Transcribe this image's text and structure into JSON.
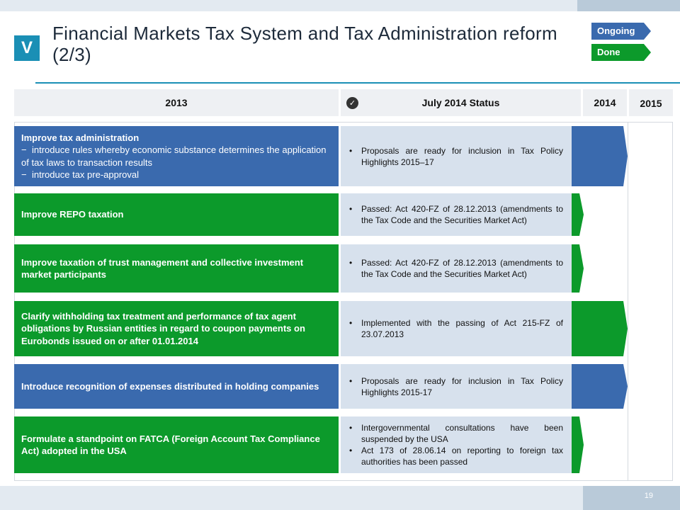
{
  "header": {
    "section": "V",
    "title": "Financial Markets Tax System and Tax Administration reform (2/3)"
  },
  "legend": {
    "ongoing": "Ongoing",
    "done": "Done",
    "ongoing_color": "#3a6aae",
    "done_color": "#0c9a2b"
  },
  "columns": {
    "c2013": "2013",
    "status": "July 2014 Status",
    "c2014": "2014",
    "c2015": "2015"
  },
  "rows": [
    {
      "status_type": "ongoing",
      "title": "Improve tax administration",
      "subitems": [
        "introduce rules whereby economic substance determines the application of tax laws to transaction results",
        "introduce tax pre-approval"
      ],
      "status": [
        "Proposals are ready for inclusion in Tax Policy Highlights 2015–17"
      ]
    },
    {
      "status_type": "done",
      "title": "Improve REPO taxation",
      "status": [
        "Passed: Act 420-FZ of 28.12.2013 (amendments to the Tax Code and the Securities Market Act)"
      ]
    },
    {
      "status_type": "done",
      "title": "Improve taxation of trust management and collective investment market participants",
      "status": [
        "Passed: Act 420-FZ of 28.12.2013 (amendments to the Tax Code and the Securities Market Act)"
      ]
    },
    {
      "status_type": "done",
      "title": "Clarify withholding tax treatment and performance of tax agent obligations by Russian entities in regard to coupon payments on Eurobonds issued on or after 01.01.2014",
      "status": [
        "Implemented with the passing of Act 215-FZ of 23.07.2013"
      ]
    },
    {
      "status_type": "ongoing",
      "title": "Introduce recognition of expenses distributed in holding companies",
      "status": [
        "Proposals are ready for inclusion in Tax Policy Highlights 2015-17"
      ]
    },
    {
      "status_type": "done",
      "title": "Formulate a standpoint on FATCA (Foreign Account Tax Compliance Act) adopted in the USA",
      "status": [
        "Intergovernmental consultations have been suspended by the USA",
        "Act 173 of 28.06.14 on reporting to foreign tax authorities has been passed"
      ]
    }
  ],
  "footer": {
    "page": "19"
  }
}
